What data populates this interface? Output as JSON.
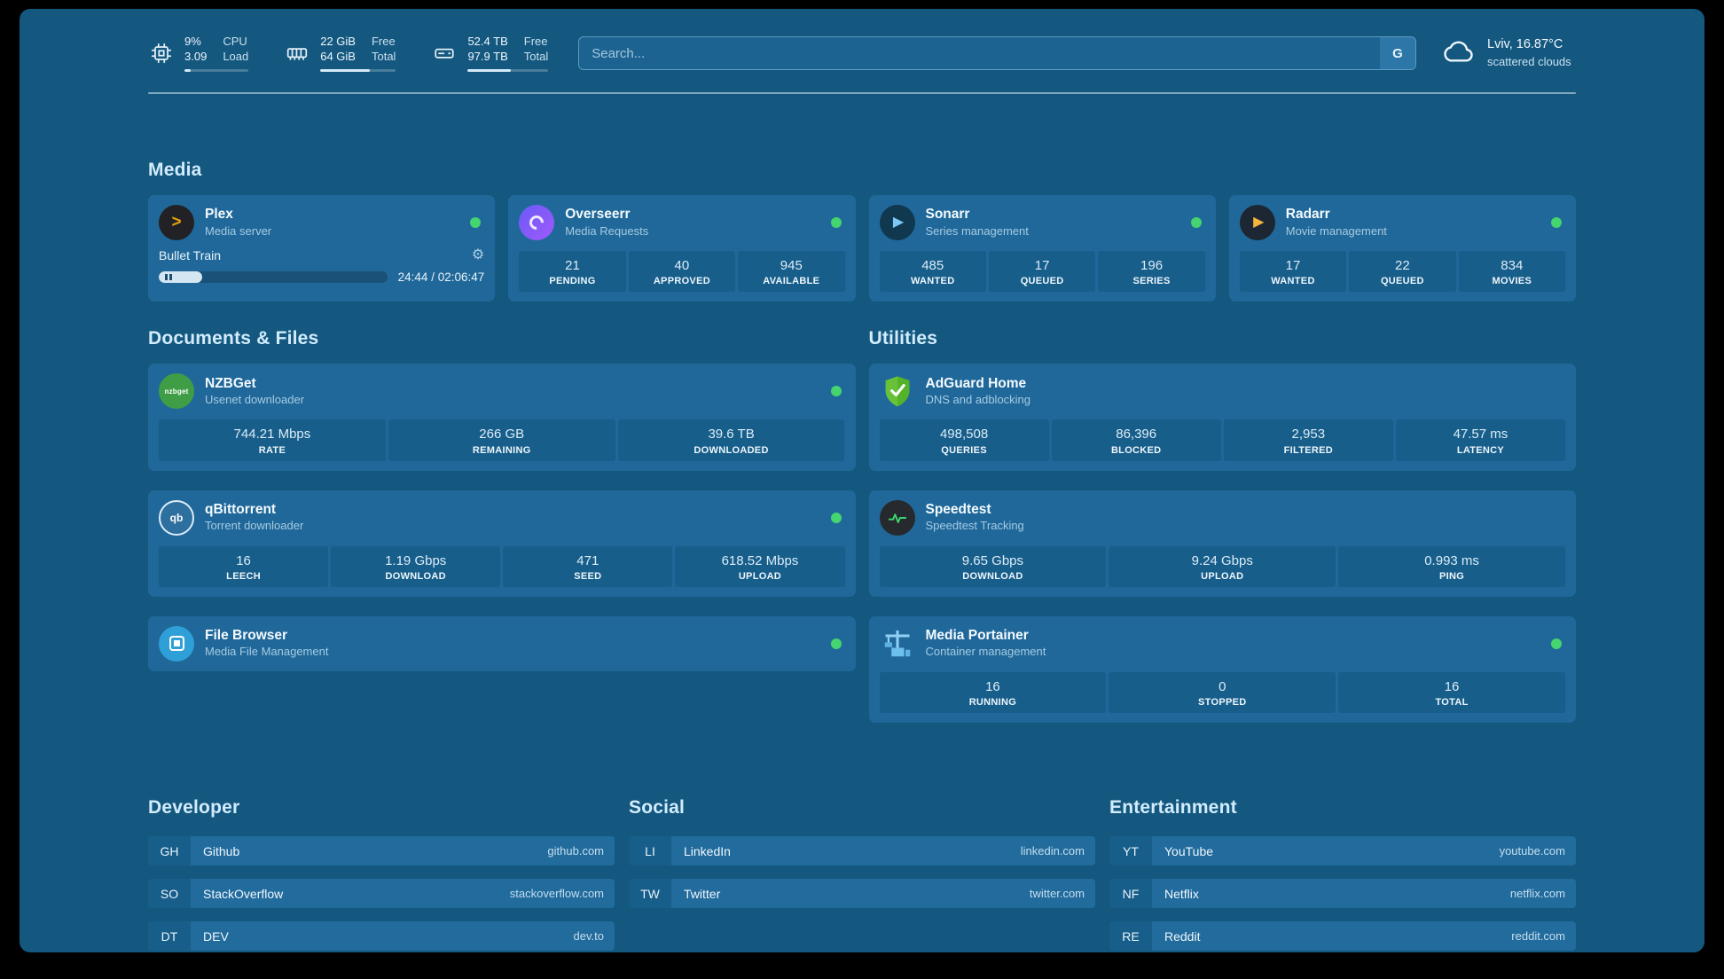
{
  "header": {
    "resources": [
      {
        "top_value": "9%",
        "bottom_value": "3.09",
        "top_label": "CPU",
        "bottom_label": "Load",
        "progress": 9
      },
      {
        "top_value": "22 GiB",
        "bottom_value": "64 GiB",
        "top_label": "Free",
        "bottom_label": "Total",
        "progress": 66
      },
      {
        "top_value": "52.4 TB",
        "bottom_value": "97.9 TB",
        "top_label": "Free",
        "bottom_label": "Total",
        "progress": 54
      }
    ],
    "search": {
      "placeholder": "Search...",
      "provider_button": "G"
    },
    "weather": {
      "location": "Lviv, 16.87°C",
      "condition": "scattered clouds"
    }
  },
  "icons": {
    "plex_glyph": ">",
    "sonarr_glyph": "▶",
    "radarr_glyph": "▶",
    "gear": "⚙",
    "nzbget_label": "nzbget",
    "qbittorrent_label": "qb"
  },
  "sections": {
    "media": {
      "title": "Media",
      "plex": {
        "name": "Plex",
        "subtitle": "Media server",
        "status": "online",
        "now_playing": "Bullet Train",
        "time": "24:44 / 02:06:47",
        "progress": 19
      },
      "overseerr": {
        "name": "Overseerr",
        "subtitle": "Media Requests",
        "status": "online",
        "stats": [
          {
            "value": "21",
            "label": "PENDING"
          },
          {
            "value": "40",
            "label": "APPROVED"
          },
          {
            "value": "945",
            "label": "AVAILABLE"
          }
        ]
      },
      "sonarr": {
        "name": "Sonarr",
        "subtitle": "Series management",
        "status": "online",
        "stats": [
          {
            "value": "485",
            "label": "WANTED"
          },
          {
            "value": "17",
            "label": "QUEUED"
          },
          {
            "value": "196",
            "label": "SERIES"
          }
        ]
      },
      "radarr": {
        "name": "Radarr",
        "subtitle": "Movie management",
        "status": "online",
        "stats": [
          {
            "value": "17",
            "label": "WANTED"
          },
          {
            "value": "22",
            "label": "QUEUED"
          },
          {
            "value": "834",
            "label": "MOVIES"
          }
        ]
      }
    },
    "documents": {
      "title": "Documents & Files",
      "nzbget": {
        "name": "NZBGet",
        "subtitle": "Usenet downloader",
        "status": "online",
        "stats": [
          {
            "value": "744.21 Mbps",
            "label": "RATE"
          },
          {
            "value": "266 GB",
            "label": "REMAINING"
          },
          {
            "value": "39.6 TB",
            "label": "DOWNLOADED"
          }
        ]
      },
      "qbittorrent": {
        "name": "qBittorrent",
        "subtitle": "Torrent downloader",
        "status": "online",
        "stats": [
          {
            "value": "16",
            "label": "LEECH"
          },
          {
            "value": "1.19 Gbps",
            "label": "DOWNLOAD"
          },
          {
            "value": "471",
            "label": "SEED"
          },
          {
            "value": "618.52 Mbps",
            "label": "UPLOAD"
          }
        ]
      },
      "filebrowser": {
        "name": "File Browser",
        "subtitle": "Media File Management",
        "status": "online"
      }
    },
    "utilities": {
      "title": "Utilities",
      "adguard": {
        "name": "AdGuard Home",
        "subtitle": "DNS and adblocking",
        "stats": [
          {
            "value": "498,508",
            "label": "QUERIES"
          },
          {
            "value": "86,396",
            "label": "BLOCKED"
          },
          {
            "value": "2,953",
            "label": "FILTERED"
          },
          {
            "value": "47.57 ms",
            "label": "LATENCY"
          }
        ]
      },
      "speedtest": {
        "name": "Speedtest",
        "subtitle": "Speedtest Tracking",
        "stats": [
          {
            "value": "9.65 Gbps",
            "label": "DOWNLOAD"
          },
          {
            "value": "9.24 Gbps",
            "label": "UPLOAD"
          },
          {
            "value": "0.993 ms",
            "label": "PING"
          }
        ]
      },
      "portainer": {
        "name": "Media Portainer",
        "subtitle": "Container management",
        "status": "online",
        "stats": [
          {
            "value": "16",
            "label": "RUNNING"
          },
          {
            "value": "0",
            "label": "STOPPED"
          },
          {
            "value": "16",
            "label": "TOTAL"
          }
        ]
      }
    },
    "bookmarks": [
      {
        "title": "Developer",
        "items": [
          {
            "abbr": "GH",
            "name": "Github",
            "domain": "github.com"
          },
          {
            "abbr": "SO",
            "name": "StackOverflow",
            "domain": "stackoverflow.com"
          },
          {
            "abbr": "DT",
            "name": "DEV",
            "domain": "dev.to"
          }
        ]
      },
      {
        "title": "Social",
        "items": [
          {
            "abbr": "LI",
            "name": "LinkedIn",
            "domain": "linkedin.com"
          },
          {
            "abbr": "TW",
            "name": "Twitter",
            "domain": "twitter.com"
          }
        ]
      },
      {
        "title": "Entertainment",
        "items": [
          {
            "abbr": "YT",
            "name": "YouTube",
            "domain": "youtube.com"
          },
          {
            "abbr": "NF",
            "name": "Netflix",
            "domain": "netflix.com"
          },
          {
            "abbr": "RE",
            "name": "Reddit",
            "domain": "reddit.com"
          }
        ]
      }
    ]
  }
}
